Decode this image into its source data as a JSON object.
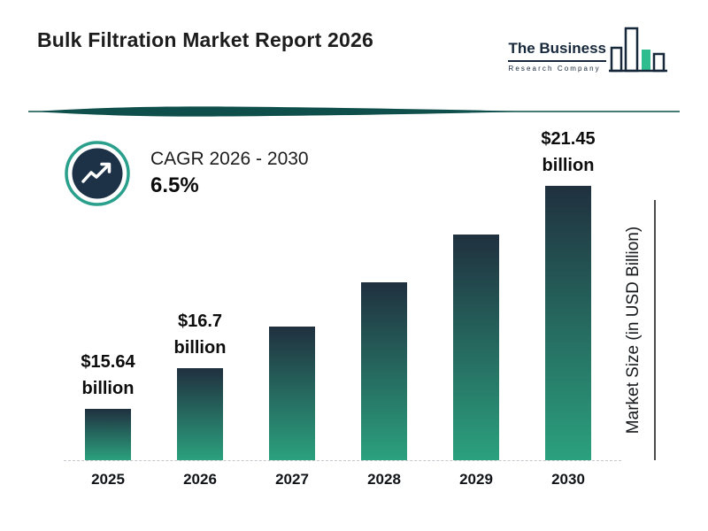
{
  "header": {
    "title": "Bulk Filtration Market Report 2026",
    "logo": {
      "name": "The Business",
      "tagline": "Research Company"
    }
  },
  "cagr": {
    "label": "CAGR 2026 - 2030",
    "value": "6.5%"
  },
  "chart_data": {
    "type": "bar",
    "title": "Bulk Filtration Market Report 2026",
    "categories": [
      "2025",
      "2026",
      "2027",
      "2028",
      "2029",
      "2030"
    ],
    "values": [
      15.64,
      16.7,
      17.79,
      18.94,
      20.17,
      21.45
    ],
    "bar_labels": [
      {
        "line1": "$15.64",
        "line2": "billion"
      },
      {
        "line1": "$16.7",
        "line2": "billion"
      },
      null,
      null,
      null,
      {
        "line1": "$21.45",
        "line2": "billion"
      }
    ],
    "xlabel": "",
    "ylabel": "Market Size (in USD Billion)",
    "ylim": [
      14.3,
      21.45
    ],
    "grid": false,
    "legend": false,
    "annotations": [
      "CAGR 2026 - 2030: 6.5%"
    ]
  },
  "colors": {
    "bar_top": "#20303f",
    "bar_bottom": "#2ba17e",
    "divider": "#0e4f4b",
    "ring": "#2aa08c",
    "circle_fill": "#1d3147",
    "logo_dark": "#17283b",
    "logo_green": "#2fbd8f"
  }
}
